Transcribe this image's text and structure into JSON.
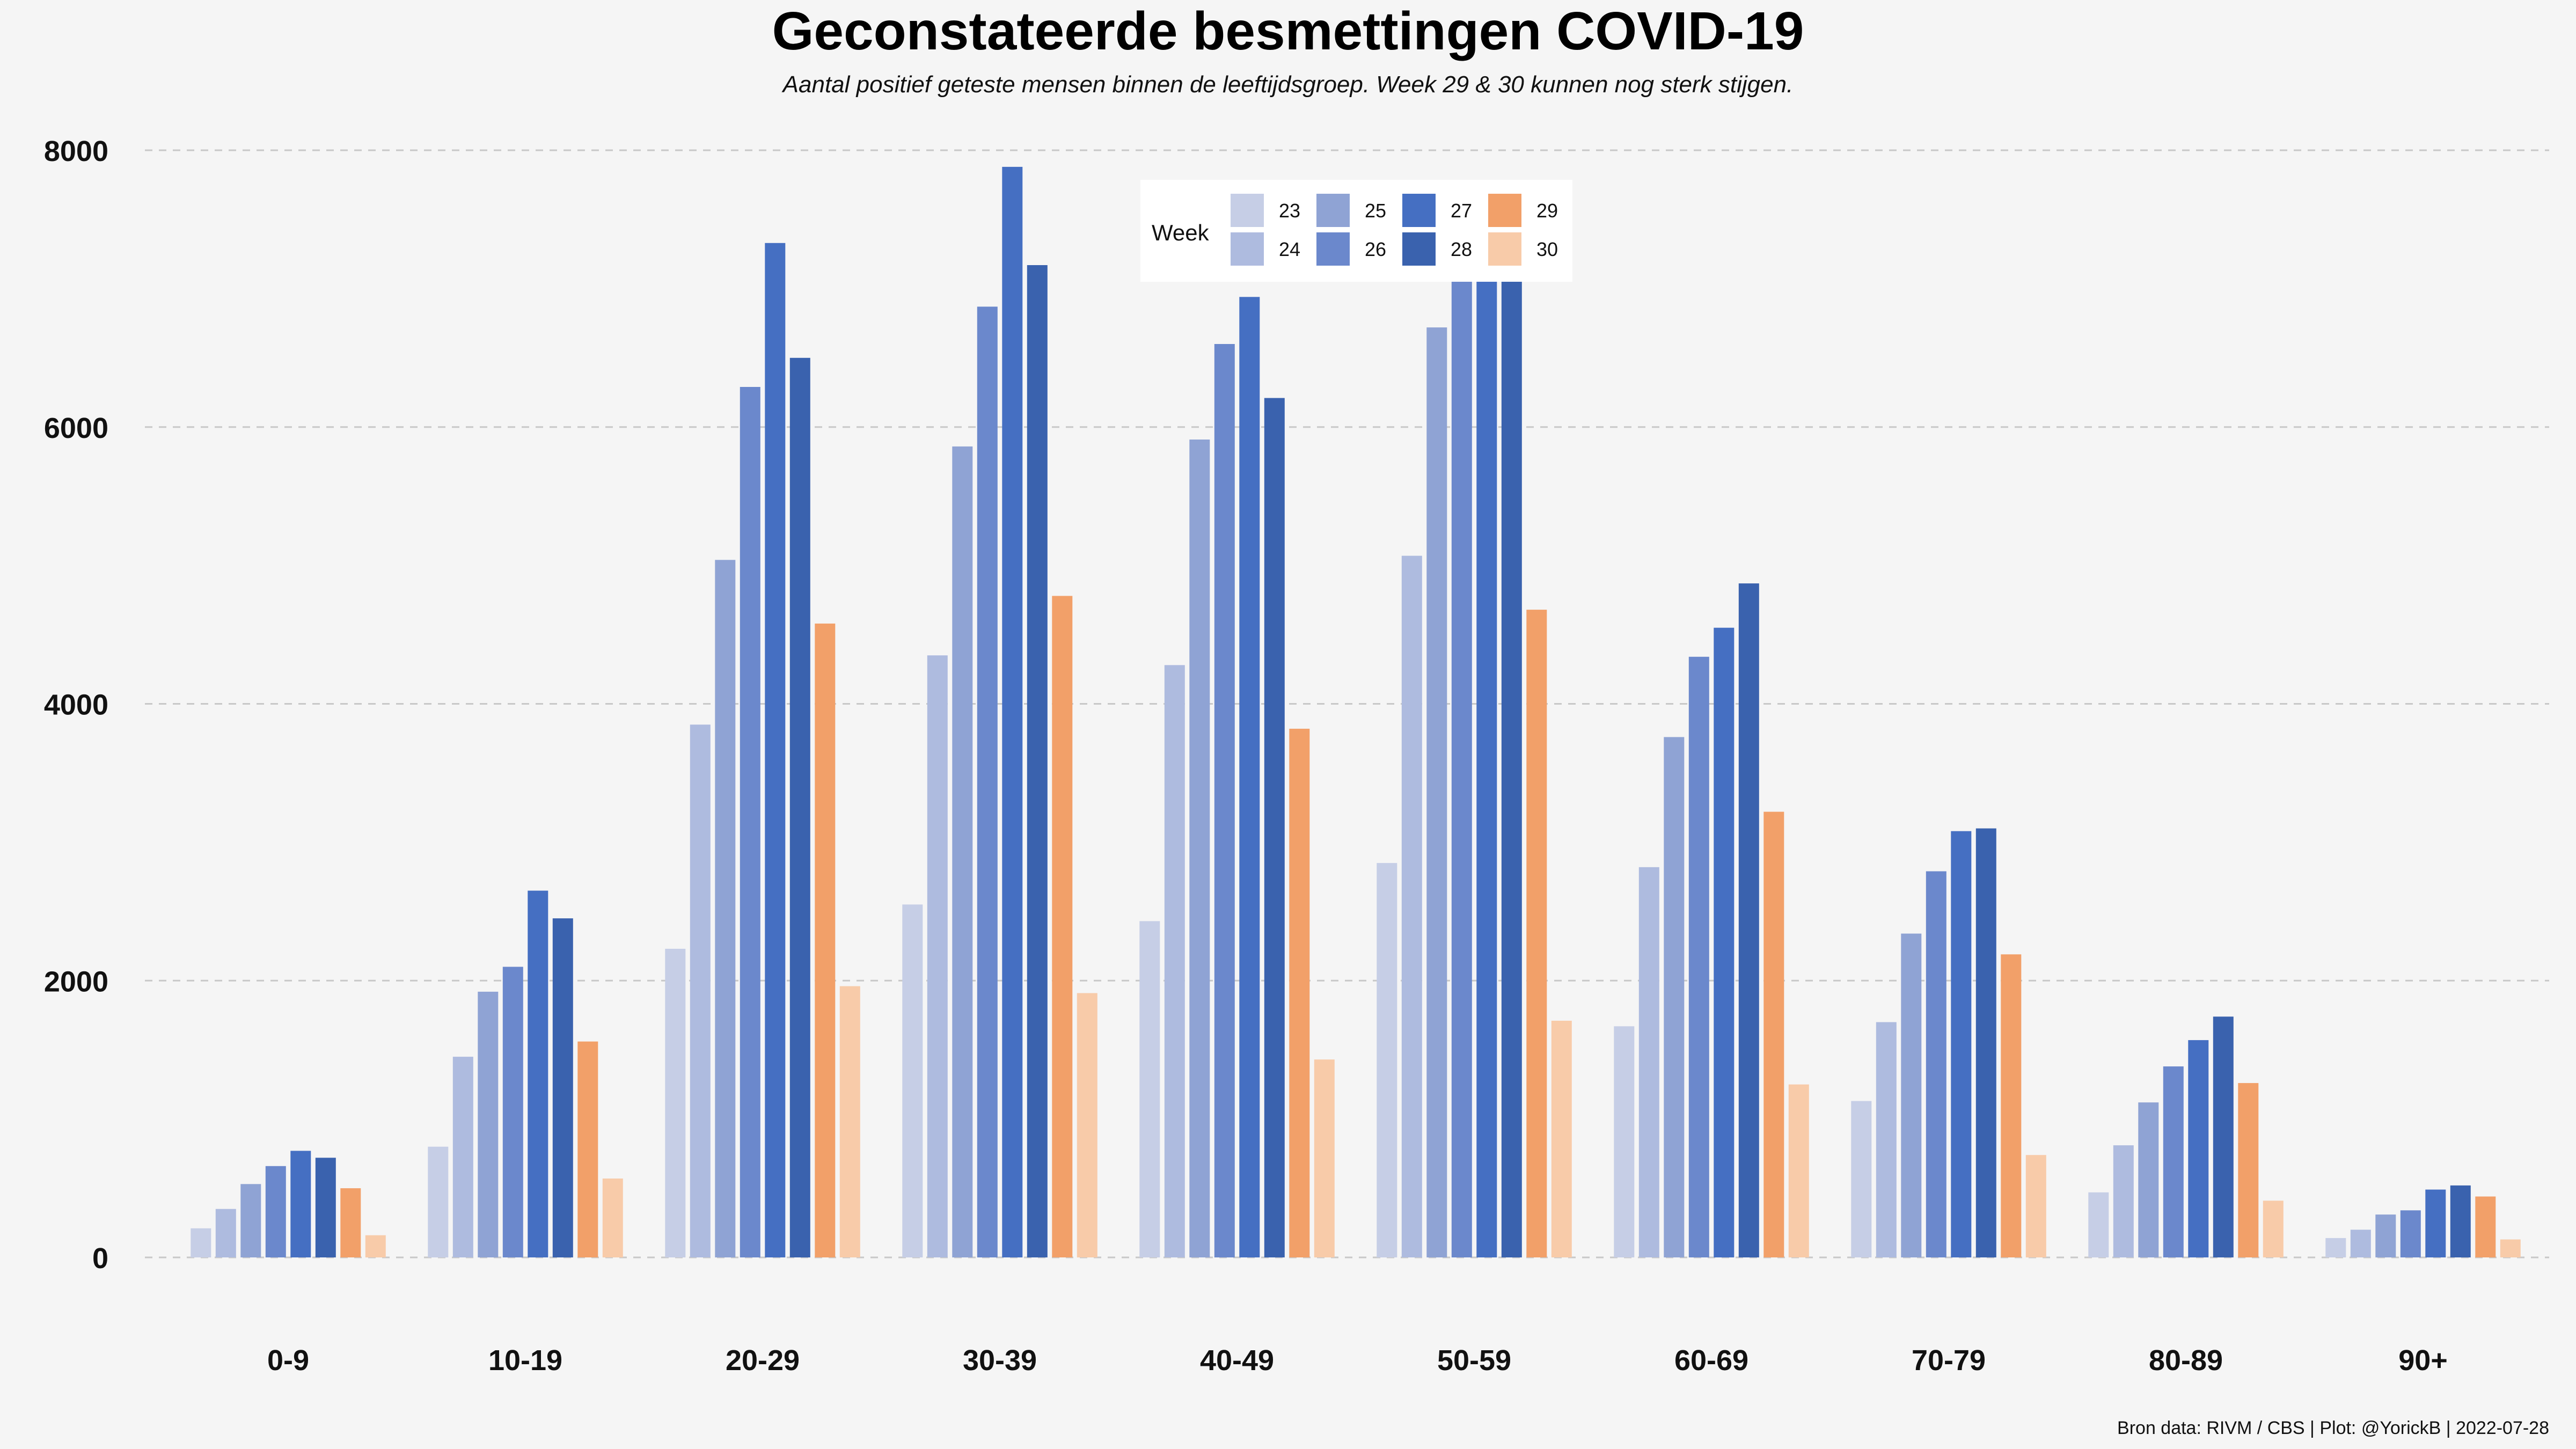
{
  "chart_data": {
    "type": "bar",
    "title": "Geconstateerde besmettingen COVID-19",
    "subtitle": "Aantal positief geteste mensen binnen de leeftijdsgroep. Week 29 & 30 kunnen nog sterk stijgen.",
    "caption": "Bron data: RIVM / CBS  | Plot: @YorickB |  2022-07-28",
    "xlabel": "",
    "ylabel": "",
    "ylim": [
      0,
      8000
    ],
    "yticks": [
      "0",
      "2000",
      "4000",
      "6000",
      "8000"
    ],
    "grid": true,
    "legend": {
      "title": "Week",
      "placement": "top-center"
    },
    "categories": [
      "0-9",
      "10-19",
      "20-29",
      "30-39",
      "40-49",
      "50-59",
      "60-69",
      "70-79",
      "80-89",
      "90+"
    ],
    "series": [
      {
        "name": "23",
        "color": "#c6cee6",
        "values": [
          210,
          800,
          2230,
          2550,
          2430,
          2850,
          1670,
          1130,
          470,
          140
        ]
      },
      {
        "name": "24",
        "color": "#aebbdf",
        "values": [
          350,
          1450,
          3850,
          4350,
          4280,
          5070,
          2820,
          1700,
          810,
          200
        ]
      },
      {
        "name": "25",
        "color": "#8fa3d4",
        "values": [
          530,
          1920,
          5040,
          5860,
          5910,
          6720,
          3760,
          2340,
          1120,
          310
        ]
      },
      {
        "name": "26",
        "color": "#6b88cc",
        "values": [
          660,
          2100,
          6290,
          6870,
          6600,
          7350,
          4340,
          2790,
          1380,
          340
        ]
      },
      {
        "name": "27",
        "color": "#456fc2",
        "values": [
          770,
          2650,
          7330,
          7880,
          6940,
          7600,
          4550,
          3080,
          1570,
          490
        ]
      },
      {
        "name": "28",
        "color": "#3a62ae",
        "values": [
          720,
          2450,
          6500,
          7170,
          6210,
          7400,
          4870,
          3100,
          1740,
          520
        ]
      },
      {
        "name": "29",
        "color": "#f2a069",
        "values": [
          500,
          1560,
          4580,
          4780,
          3820,
          4680,
          3220,
          2190,
          1260,
          440
        ]
      },
      {
        "name": "30",
        "color": "#f8cba9",
        "values": [
          160,
          570,
          1960,
          1910,
          1430,
          1710,
          1250,
          740,
          410,
          130
        ]
      }
    ]
  }
}
